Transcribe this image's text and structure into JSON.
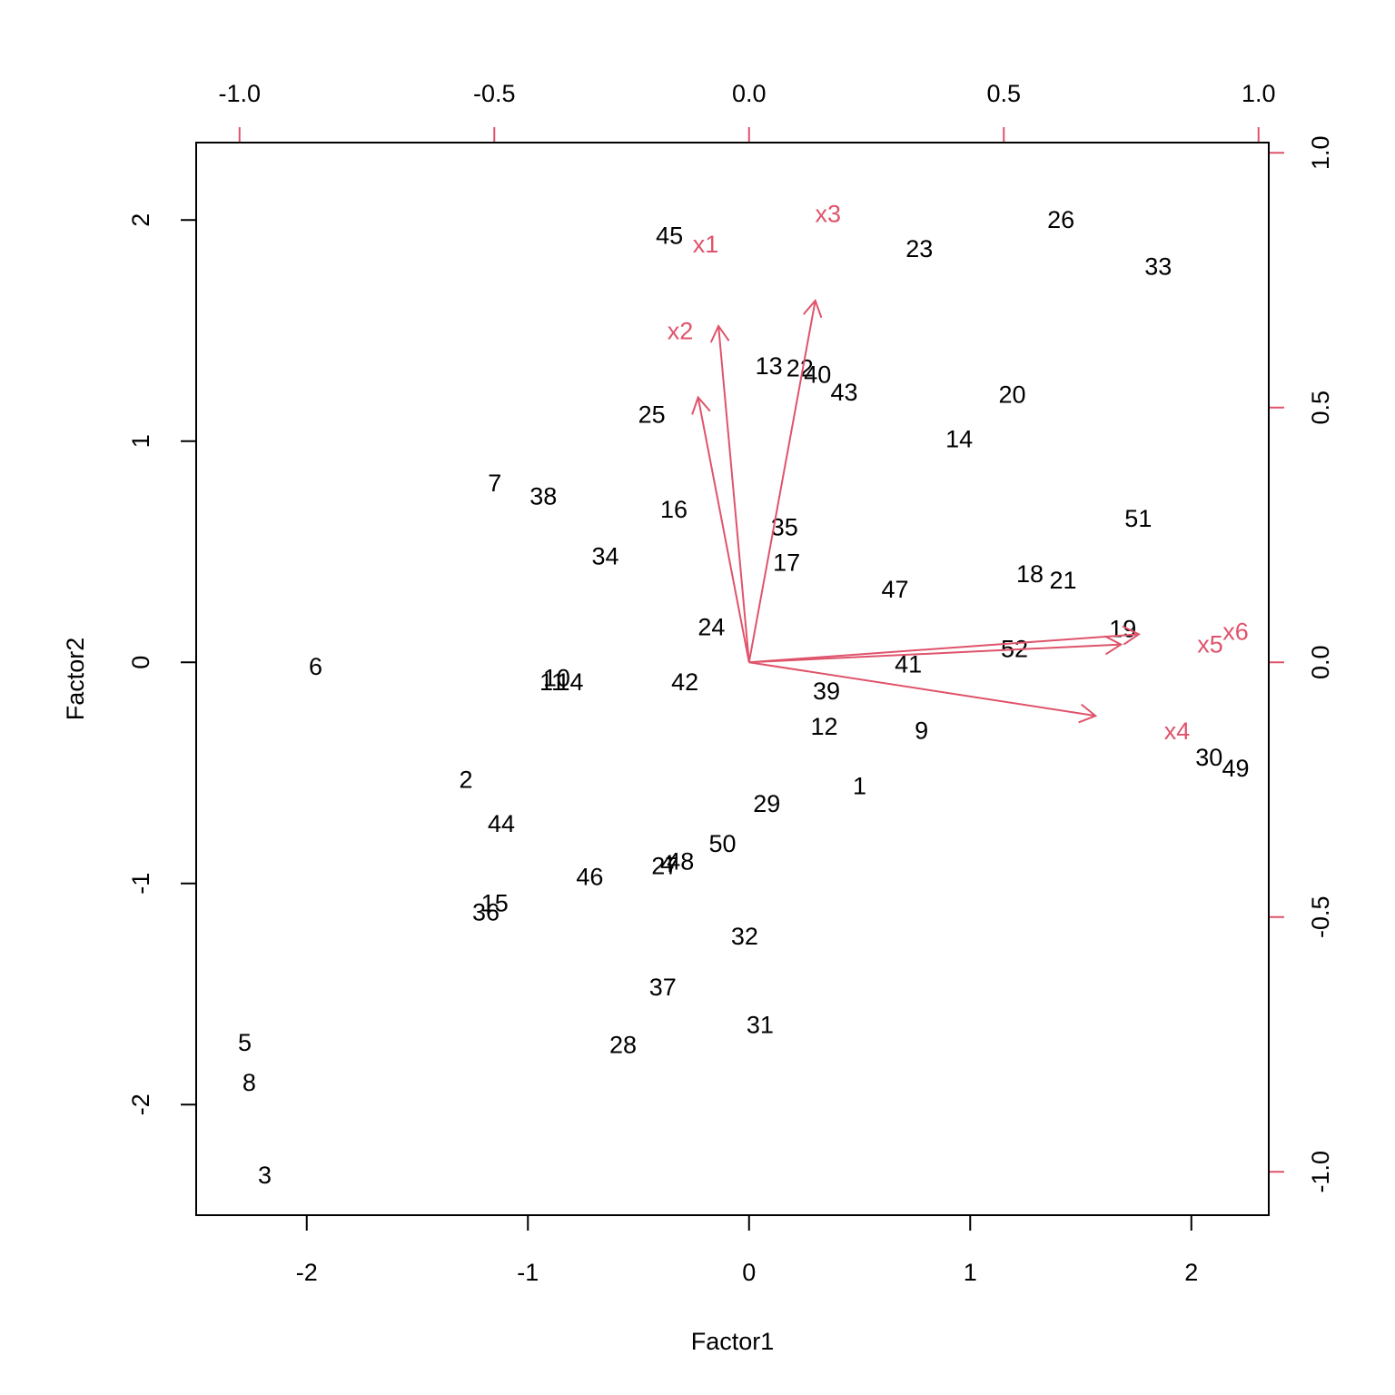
{
  "chart_data": {
    "type": "scatter",
    "title": "",
    "xlabel": "Factor1",
    "ylabel": "Factor2",
    "xlim": [
      -2.5,
      2.35
    ],
    "ylim": [
      -2.5,
      2.35
    ],
    "x_ticks": [
      -2,
      -1,
      0,
      1,
      2
    ],
    "y_ticks": [
      -2,
      -1,
      0,
      1,
      2
    ],
    "loading_axis_ticks": [
      "-1.0",
      "-0.5",
      "0.0",
      "0.5",
      "1.0"
    ],
    "loading_lim": [
      -1.0,
      1.0
    ],
    "colors": {
      "points": "#000000",
      "loadings": "#DF536B",
      "frame": "#000000"
    },
    "points": [
      {
        "label": "1",
        "x": 0.5,
        "y": -0.56
      },
      {
        "label": "2",
        "x": -1.28,
        "y": -0.53
      },
      {
        "label": "3",
        "x": -2.19,
        "y": -2.32
      },
      {
        "label": "4",
        "x": -0.37,
        "y": -0.91
      },
      {
        "label": "5",
        "x": -2.28,
        "y": -1.72
      },
      {
        "label": "6",
        "x": -1.96,
        "y": -0.02
      },
      {
        "label": "7",
        "x": -1.15,
        "y": 0.81
      },
      {
        "label": "8",
        "x": -2.26,
        "y": -1.9
      },
      {
        "label": "9",
        "x": 0.78,
        "y": -0.31
      },
      {
        "label": "10",
        "x": -0.87,
        "y": -0.07
      },
      {
        "label": "11",
        "x": -0.89,
        "y": -0.09
      },
      {
        "label": "12",
        "x": 0.34,
        "y": -0.29
      },
      {
        "label": "13",
        "x": 0.09,
        "y": 1.34
      },
      {
        "label": "14",
        "x": -0.81,
        "y": -0.09
      },
      {
        "label": "14",
        "x": 0.95,
        "y": 1.01
      },
      {
        "label": "15",
        "x": -1.15,
        "y": -1.09
      },
      {
        "label": "16",
        "x": -0.34,
        "y": 0.69
      },
      {
        "label": "17",
        "x": 0.17,
        "y": 0.45
      },
      {
        "label": "18",
        "x": 1.27,
        "y": 0.4
      },
      {
        "label": "19",
        "x": 1.69,
        "y": 0.15
      },
      {
        "label": "20",
        "x": 1.19,
        "y": 1.21
      },
      {
        "label": "21",
        "x": 1.42,
        "y": 0.37
      },
      {
        "label": "22",
        "x": 0.23,
        "y": 1.33
      },
      {
        "label": "23",
        "x": 0.77,
        "y": 1.87
      },
      {
        "label": "24",
        "x": -0.17,
        "y": 0.16
      },
      {
        "label": "25",
        "x": -0.44,
        "y": 1.12
      },
      {
        "label": "26",
        "x": 1.41,
        "y": 2.0
      },
      {
        "label": "27",
        "x": -0.38,
        "y": -0.92
      },
      {
        "label": "28",
        "x": -0.57,
        "y": -1.73
      },
      {
        "label": "29",
        "x": 0.08,
        "y": -0.64
      },
      {
        "label": "30",
        "x": 2.08,
        "y": -0.43
      },
      {
        "label": "31",
        "x": 0.05,
        "y": -1.64
      },
      {
        "label": "32",
        "x": -0.02,
        "y": -1.24
      },
      {
        "label": "33",
        "x": 1.85,
        "y": 1.79
      },
      {
        "label": "34",
        "x": -0.65,
        "y": 0.48
      },
      {
        "label": "35",
        "x": 0.16,
        "y": 0.61
      },
      {
        "label": "36",
        "x": -1.19,
        "y": -1.13
      },
      {
        "label": "37",
        "x": -0.39,
        "y": -1.47
      },
      {
        "label": "38",
        "x": -0.93,
        "y": 0.75
      },
      {
        "label": "39",
        "x": 0.35,
        "y": -0.13
      },
      {
        "label": "40",
        "x": 0.31,
        "y": 1.3
      },
      {
        "label": "41",
        "x": 0.72,
        "y": -0.01
      },
      {
        "label": "42",
        "x": -0.29,
        "y": -0.09
      },
      {
        "label": "43",
        "x": 0.43,
        "y": 1.22
      },
      {
        "label": "44",
        "x": -1.12,
        "y": -0.73
      },
      {
        "label": "45",
        "x": -0.36,
        "y": 1.93
      },
      {
        "label": "46",
        "x": -0.72,
        "y": -0.97
      },
      {
        "label": "47",
        "x": 0.66,
        "y": 0.33
      },
      {
        "label": "48",
        "x": -0.31,
        "y": -0.9
      },
      {
        "label": "49",
        "x": 2.2,
        "y": -0.48
      },
      {
        "label": "50",
        "x": -0.12,
        "y": -0.82
      },
      {
        "label": "51",
        "x": 1.76,
        "y": 0.65
      },
      {
        "label": "52",
        "x": 1.2,
        "y": 0.06
      }
    ],
    "loadings": [
      {
        "label": "x1",
        "x": -0.1,
        "y": 0.52,
        "label_x": -0.085,
        "label_y": 0.82
      },
      {
        "label": "x2",
        "x": -0.06,
        "y": 0.66,
        "label_x": -0.135,
        "label_y": 0.65
      },
      {
        "label": "x3",
        "x": 0.13,
        "y": 0.71,
        "label_x": 0.155,
        "label_y": 0.88
      },
      {
        "label": "x4",
        "x": 0.68,
        "y": -0.105,
        "label_x": 0.84,
        "label_y": -0.135
      },
      {
        "label": "x5",
        "x": 0.73,
        "y": 0.035,
        "label_x": 0.905,
        "label_y": 0.035
      },
      {
        "label": "x6",
        "x": 0.765,
        "y": 0.055,
        "label_x": 0.955,
        "label_y": 0.06
      }
    ]
  }
}
